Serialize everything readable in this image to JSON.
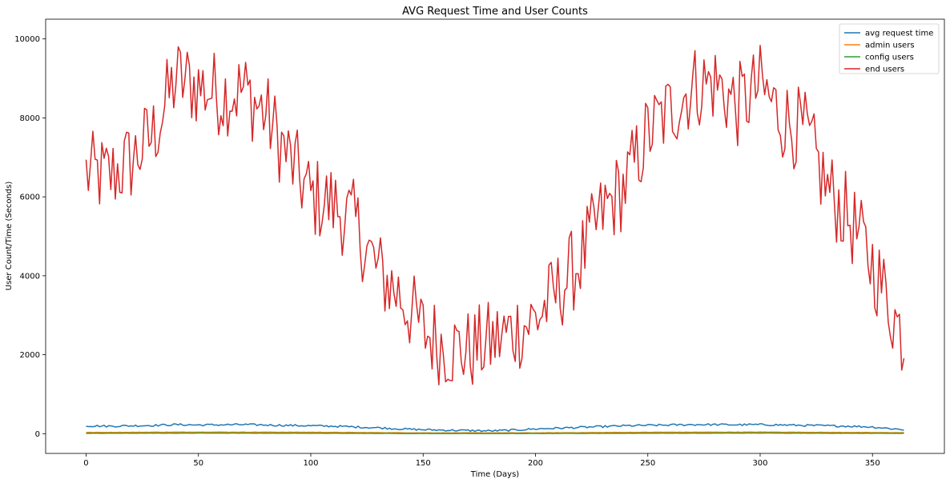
{
  "chart_data": {
    "type": "line",
    "title": "AVG Request Time and User Counts",
    "xlabel": "Time (Days)",
    "ylabel": "User Count/Time (Seconds)",
    "xlim": [
      -18,
      382
    ],
    "ylim": [
      -500,
      10500
    ],
    "xticks": [
      0,
      50,
      100,
      150,
      200,
      250,
      300,
      350
    ],
    "yticks": [
      0,
      2000,
      4000,
      6000,
      8000,
      10000
    ],
    "grid": false,
    "legend": "top-right",
    "x_range": [
      0,
      364
    ],
    "series": [
      {
        "name": "avg request time",
        "color": "#1f77b4",
        "x": [
          0,
          10,
          20,
          30,
          40,
          50,
          60,
          70,
          80,
          90,
          100,
          110,
          120,
          130,
          140,
          150,
          160,
          170,
          180,
          190,
          200,
          210,
          220,
          230,
          240,
          250,
          260,
          270,
          280,
          290,
          300,
          310,
          320,
          330,
          340,
          350,
          364
        ],
        "values": [
          200,
          190,
          200,
          210,
          230,
          220,
          225,
          230,
          220,
          210,
          200,
          190,
          170,
          150,
          120,
          100,
          90,
          80,
          70,
          90,
          120,
          140,
          160,
          180,
          200,
          210,
          220,
          230,
          230,
          225,
          230,
          220,
          210,
          200,
          190,
          170,
          100
        ]
      },
      {
        "name": "admin users",
        "color": "#ff7f0e",
        "x": [
          0,
          50,
          100,
          150,
          200,
          250,
          300,
          364
        ],
        "values": [
          30,
          40,
          35,
          20,
          20,
          35,
          40,
          25
        ]
      },
      {
        "name": "config users",
        "color": "#2ca02c",
        "x": [
          0,
          50,
          100,
          150,
          200,
          250,
          300,
          364
        ],
        "values": [
          10,
          15,
          12,
          5,
          5,
          12,
          15,
          8
        ]
      },
      {
        "name": "end users",
        "color": "#d62728",
        "x": [
          0,
          10,
          20,
          30,
          40,
          50,
          60,
          70,
          80,
          90,
          100,
          110,
          120,
          130,
          140,
          150,
          160,
          170,
          180,
          190,
          200,
          210,
          220,
          230,
          240,
          250,
          260,
          270,
          280,
          290,
          300,
          310,
          320,
          330,
          340,
          350,
          364
        ],
        "values": [
          6600,
          6500,
          6900,
          7600,
          9000,
          8800,
          8600,
          8700,
          8100,
          7000,
          6000,
          5800,
          5300,
          4100,
          3500,
          2600,
          2200,
          2100,
          2300,
          2600,
          2900,
          3600,
          4400,
          5600,
          6300,
          7600,
          8200,
          8800,
          8900,
          8300,
          8800,
          8000,
          7600,
          6200,
          5400,
          4300,
          2400
        ]
      }
    ]
  }
}
